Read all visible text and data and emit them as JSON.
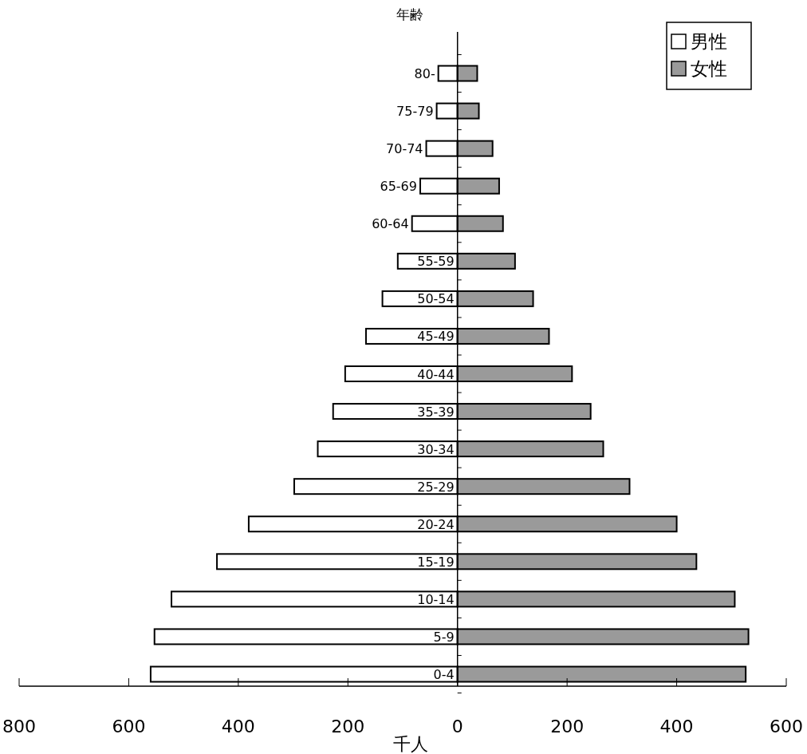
{
  "chart_data": {
    "type": "bar",
    "orientation": "horizontal",
    "stacked": true,
    "xlabel": "千人",
    "ylabel": "年齢",
    "categories": [
      "80-",
      "75-79",
      "70-74",
      "65-69",
      "60-64",
      "55-59",
      "50-54",
      "45-49",
      "40-44",
      "35-39",
      "30-34",
      "25-29",
      "20-24",
      "15-19",
      "10-14",
      "5-9",
      "0-4"
    ],
    "series": [
      {
        "name": "男性",
        "color": "#ffffff",
        "values": [
          -35,
          -38,
          -57,
          -68,
          -83,
          -109,
          -137,
          -167,
          -205,
          -227,
          -255,
          -298,
          -381,
          -439,
          -522,
          -553,
          -560
        ]
      },
      {
        "name": "女性",
        "color": "#9a9a9a",
        "values": [
          36,
          39,
          64,
          76,
          83,
          105,
          138,
          167,
          209,
          243,
          266,
          314,
          400,
          436,
          506,
          531,
          526
        ]
      }
    ],
    "xlim": [
      -800,
      600
    ],
    "xticks": [
      {
        "value": -800,
        "label": "800"
      },
      {
        "value": -600,
        "label": "600"
      },
      {
        "value": -400,
        "label": "400"
      },
      {
        "value": -200,
        "label": "200"
      },
      0,
      200,
      400,
      600
    ],
    "legend": "top right"
  }
}
